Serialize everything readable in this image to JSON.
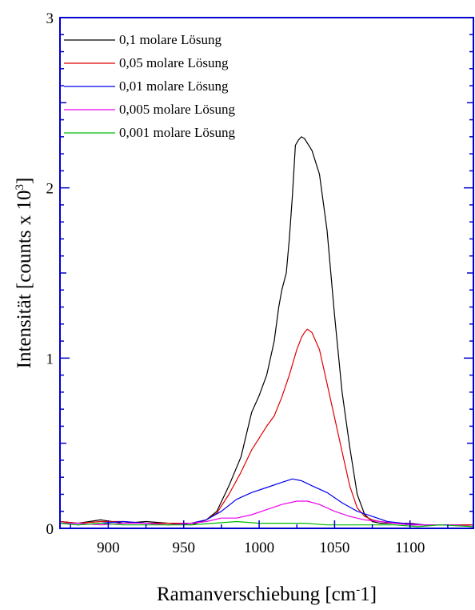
{
  "chart_data": {
    "type": "line",
    "title": "",
    "xlabel": "Ramanverschiebung [cm",
    "xlabel_sup": "-",
    "xlabel_tail": "1]",
    "ylabel": "Intensität [counts x 10",
    "ylabel_sup": "3",
    "ylabel_tail": "]",
    "xlim": [
      868,
      1142
    ],
    "ylim": [
      0,
      3
    ],
    "xticks": [
      900,
      950,
      1000,
      1050,
      1100
    ],
    "xtick_labels": [
      "900",
      "950",
      "1000",
      "1050",
      "1100"
    ],
    "yticks": [
      0,
      1,
      2,
      3
    ],
    "ytick_labels": [
      "0",
      "1",
      "2",
      "3"
    ],
    "grid": false,
    "legend_position": "top-left",
    "axis_color": "#0000cc",
    "series": [
      {
        "name": "0,1    molare Lösung",
        "color": "#000000",
        "x": [
          868,
          880,
          895,
          910,
          925,
          940,
          955,
          965,
          972,
          980,
          988,
          995,
          1000,
          1005,
          1010,
          1013,
          1015,
          1018,
          1020,
          1022,
          1024,
          1026,
          1028,
          1030,
          1035,
          1040,
          1045,
          1050,
          1055,
          1060,
          1065,
          1070,
          1075,
          1080,
          1090,
          1100,
          1110,
          1120,
          1130,
          1142
        ],
        "y": [
          0.04,
          0.03,
          0.05,
          0.03,
          0.04,
          0.03,
          0.02,
          0.05,
          0.1,
          0.25,
          0.42,
          0.68,
          0.78,
          0.9,
          1.1,
          1.3,
          1.4,
          1.5,
          1.7,
          1.95,
          2.25,
          2.28,
          2.3,
          2.29,
          2.22,
          2.08,
          1.75,
          1.25,
          0.8,
          0.48,
          0.2,
          0.08,
          0.04,
          0.03,
          0.03,
          0.02,
          0.02,
          0.02,
          0.02,
          0.02
        ]
      },
      {
        "name": "0,05  molare Lösung",
        "color": "#e00000",
        "x": [
          868,
          880,
          895,
          910,
          925,
          940,
          955,
          965,
          972,
          980,
          988,
          995,
          1000,
          1005,
          1010,
          1015,
          1020,
          1025,
          1028,
          1030,
          1032,
          1035,
          1040,
          1045,
          1050,
          1055,
          1060,
          1065,
          1070,
          1075,
          1080,
          1090,
          1100,
          1110,
          1120,
          1130,
          1142
        ],
        "y": [
          0.04,
          0.03,
          0.04,
          0.04,
          0.03,
          0.03,
          0.03,
          0.05,
          0.09,
          0.2,
          0.33,
          0.46,
          0.53,
          0.6,
          0.66,
          0.77,
          0.9,
          1.05,
          1.12,
          1.15,
          1.17,
          1.15,
          1.05,
          0.85,
          0.65,
          0.45,
          0.25,
          0.12,
          0.07,
          0.05,
          0.04,
          0.03,
          0.03,
          0.02,
          0.02,
          0.02,
          0.02
        ]
      },
      {
        "name": "0,01  molare Lösung",
        "color": "#0000ee",
        "x": [
          868,
          880,
          895,
          910,
          925,
          940,
          955,
          965,
          975,
          985,
          995,
          1005,
          1015,
          1022,
          1028,
          1035,
          1045,
          1055,
          1065,
          1075,
          1085,
          1095,
          1110,
          1125,
          1142
        ],
        "y": [
          0.03,
          0.02,
          0.03,
          0.04,
          0.03,
          0.02,
          0.03,
          0.05,
          0.1,
          0.17,
          0.21,
          0.24,
          0.27,
          0.29,
          0.28,
          0.25,
          0.21,
          0.15,
          0.1,
          0.07,
          0.04,
          0.03,
          0.02,
          0.02,
          0.01
        ]
      },
      {
        "name": "0,005 molare Lösung",
        "color": "#ee00ee",
        "x": [
          868,
          880,
          895,
          910,
          925,
          940,
          955,
          965,
          975,
          985,
          995,
          1005,
          1015,
          1025,
          1032,
          1040,
          1050,
          1060,
          1070,
          1080,
          1090,
          1100,
          1115,
          1130,
          1142
        ],
        "y": [
          0.03,
          0.03,
          0.02,
          0.03,
          0.03,
          0.02,
          0.03,
          0.04,
          0.06,
          0.06,
          0.08,
          0.11,
          0.14,
          0.16,
          0.16,
          0.14,
          0.1,
          0.07,
          0.05,
          0.04,
          0.03,
          0.02,
          0.02,
          0.02,
          0.01
        ]
      },
      {
        "name": "0,001 molare Lösung",
        "color": "#00bb00",
        "x": [
          868,
          880,
          895,
          910,
          925,
          940,
          955,
          970,
          985,
          1000,
          1015,
          1030,
          1045,
          1060,
          1075,
          1090,
          1105,
          1120,
          1142
        ],
        "y": [
          0.03,
          0.02,
          0.03,
          0.02,
          0.02,
          0.02,
          0.02,
          0.03,
          0.04,
          0.03,
          0.03,
          0.03,
          0.02,
          0.02,
          0.02,
          0.02,
          0.01,
          0.02,
          0.01
        ]
      }
    ]
  }
}
